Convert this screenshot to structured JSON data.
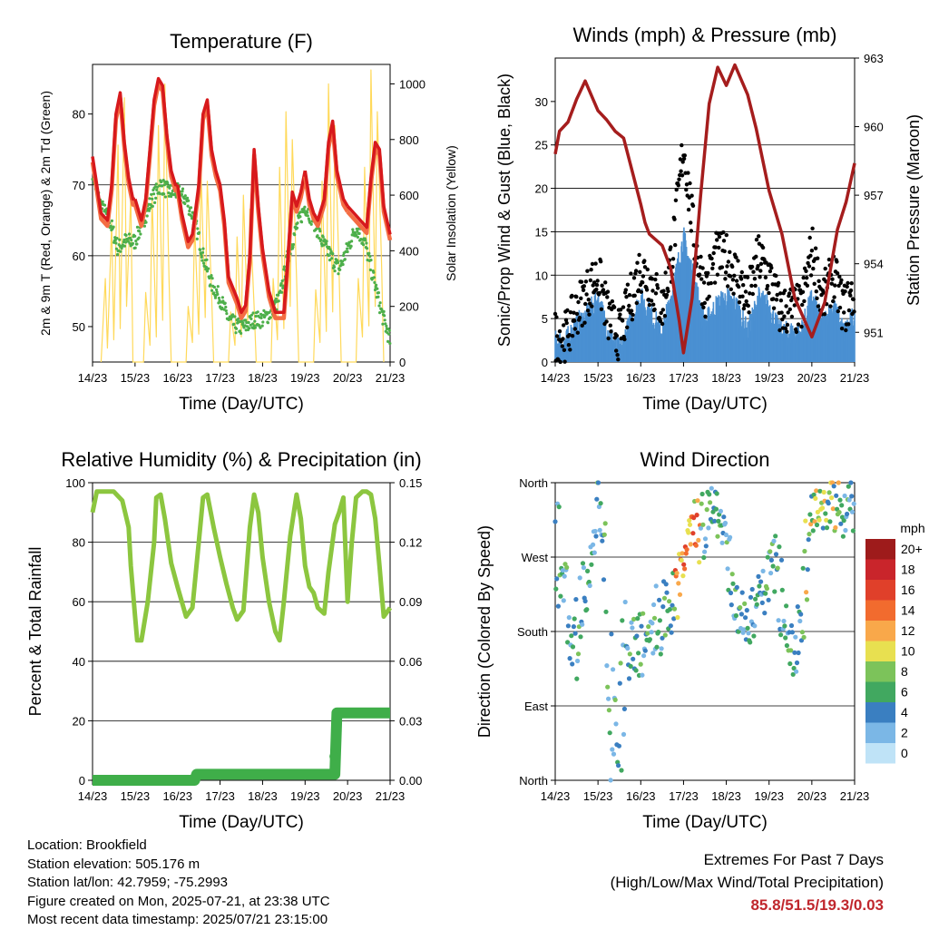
{
  "x_tick_labels": [
    "14/23",
    "15/23",
    "16/23",
    "17/23",
    "18/23",
    "19/23",
    "20/23",
    "21/23"
  ],
  "x_axis_label": "Time (Day/UTC)",
  "colors": {
    "temp_2m": "#d7191c",
    "temp_9m": "#f46d43",
    "dewpoint": "#4daf4a",
    "solar": "#ffd95a",
    "wind": "#4a90d2",
    "gust": "#000000",
    "pressure": "#a51d1d",
    "rh": "#8cc63f",
    "precip": "#3fae49"
  },
  "chart_data": [
    {
      "id": "temperature",
      "type": "line",
      "title": "Temperature (F)",
      "ylabel": "2m & 9m T (Red, Orange) & 2m Td (Green)",
      "y2label": "Solar Insolation (Yellow)",
      "ylim": [
        45,
        87
      ],
      "y2lim": [
        0,
        1070
      ],
      "yticks": [
        50,
        60,
        70,
        80
      ],
      "y2ticks": [
        0,
        200,
        400,
        600,
        800,
        1000
      ],
      "series": [
        {
          "x": [
            0,
            0.1,
            0.2,
            0.35,
            0.45,
            0.55,
            0.65,
            0.75,
            0.85,
            0.95,
            1.0
          ],
          "values": [
            74,
            70,
            66,
            65,
            70,
            80,
            83,
            76,
            71,
            68,
            68
          ]
        },
        {
          "x": [
            1.0,
            1.15,
            1.25,
            1.35,
            1.45,
            1.55,
            1.65,
            1.75,
            1.85,
            1.95,
            2.0
          ],
          "values": [
            68,
            65,
            68,
            75,
            82,
            85,
            84,
            77,
            72,
            70,
            70
          ]
        },
        {
          "x": [
            2.0,
            2.1,
            2.25,
            2.35,
            2.5,
            2.6,
            2.7,
            2.8,
            2.9,
            3.0
          ],
          "values": [
            70,
            66,
            62,
            63,
            70,
            80,
            82,
            75,
            72,
            70
          ]
        },
        {
          "x": [
            3.0,
            3.1,
            3.2,
            3.4,
            3.5,
            3.6,
            3.7,
            3.8,
            3.9,
            4.0
          ],
          "values": [
            70,
            65,
            57,
            54,
            52,
            53,
            60,
            75,
            67,
            61
          ]
        },
        {
          "x": [
            4.0,
            4.15,
            4.3,
            4.5,
            4.6,
            4.7,
            4.8,
            4.9,
            5.0
          ],
          "values": [
            61,
            55,
            52,
            52,
            60,
            69,
            67,
            69,
            72
          ]
        },
        {
          "x": [
            5.0,
            5.1,
            5.2,
            5.3,
            5.45,
            5.55,
            5.65,
            5.75,
            5.9,
            6.0
          ],
          "values": [
            72,
            68,
            66,
            65,
            68,
            76,
            79,
            72,
            68,
            67
          ]
        },
        {
          "x": [
            6.0,
            6.15,
            6.3,
            6.45,
            6.55,
            6.65,
            6.75,
            6.85,
            7.0
          ],
          "values": [
            67,
            66,
            65,
            64,
            71,
            76,
            75,
            67,
            63
          ]
        },
        {
          "x": [
            0,
            0.1,
            0.2,
            0.3,
            0.4,
            0.5,
            0.6,
            0.75,
            1.0,
            1.2,
            1.4,
            1.6,
            1.8,
            2.0,
            2.2,
            2.4,
            2.6,
            2.8,
            3.0,
            3.2,
            3.4,
            3.6,
            3.8,
            4.0,
            4.2,
            4.4,
            4.6,
            4.8,
            5.0,
            5.2,
            5.4,
            5.6,
            5.8,
            6.0,
            6.2,
            6.4,
            6.6,
            6.8,
            7.0
          ],
          "values": [
            72,
            69,
            67,
            66,
            65,
            63,
            61,
            62,
            62,
            65,
            68,
            70,
            69,
            69,
            68,
            65,
            60,
            56,
            54,
            51,
            50,
            50,
            51,
            51,
            52,
            54,
            60,
            64,
            67,
            65,
            62,
            60,
            58,
            61,
            64,
            62,
            57,
            52,
            48
          ]
        },
        {
          "x": [
            0.2,
            0.3,
            0.35,
            0.45,
            0.5,
            0.6,
            0.65,
            0.75,
            0.8,
            0.9,
            0.95,
            1.2,
            1.25,
            1.35,
            1.4,
            1.5,
            1.55,
            1.65,
            1.7,
            1.8,
            1.85,
            2.2,
            2.25,
            2.35,
            2.4,
            2.5,
            2.55,
            2.65,
            2.7,
            2.8,
            2.85,
            3.2,
            3.25,
            3.35,
            3.4,
            3.5,
            3.55,
            3.65,
            3.7,
            3.8,
            3.85,
            4.2,
            4.25,
            4.35,
            4.4,
            4.5,
            4.55,
            4.65,
            4.7,
            4.8,
            4.85,
            5.2,
            5.25,
            5.35,
            5.4,
            5.5,
            5.55,
            5.65,
            5.7,
            5.8,
            5.85,
            6.2,
            6.25,
            6.35,
            6.4,
            6.5,
            6.55,
            6.65,
            6.7,
            6.8,
            6.85
          ],
          "values": [
            0,
            300,
            50,
            500,
            80,
            780,
            120,
            950,
            200,
            600,
            0,
            0,
            250,
            60,
            600,
            90,
            850,
            150,
            1000,
            300,
            0,
            0,
            200,
            70,
            500,
            100,
            700,
            160,
            650,
            250,
            0,
            0,
            180,
            60,
            450,
            90,
            600,
            140,
            550,
            200,
            0,
            0,
            300,
            80,
            700,
            120,
            900,
            200,
            800,
            300,
            0,
            0,
            260,
            70,
            650,
            110,
            1000,
            180,
            850,
            320,
            0,
            0,
            300,
            90,
            700,
            130,
            1050,
            200,
            900,
            350,
            0
          ]
        }
      ]
    },
    {
      "id": "winds",
      "type": "scatter",
      "title": "Winds (mph) & Pressure (mb)",
      "ylabel": "Sonic/Prop Wind & Gust (Blue, Black)",
      "y2label": "Station Pressure (Maroon)",
      "ylim": [
        0,
        35
      ],
      "y2lim": [
        949.7,
        963.0
      ],
      "yticks": [
        0,
        5,
        10,
        15,
        20,
        25,
        30
      ],
      "y2ticks": [
        951,
        954,
        957,
        960,
        963
      ],
      "series": [
        {
          "x": [
            0,
            0.25,
            0.5,
            0.75,
            1.0,
            1.25,
            1.5,
            1.75,
            2.0,
            2.25,
            2.5,
            2.75,
            3.0,
            3.25,
            3.5,
            3.75,
            4.0,
            4.25,
            4.5,
            4.75,
            5.0,
            5.25,
            5.5,
            5.75,
            6.0,
            6.25,
            6.5,
            6.75,
            7.0
          ],
          "values": [
            2,
            2,
            4,
            5,
            7,
            3,
            1,
            4,
            7,
            5,
            3,
            8,
            14,
            9,
            4,
            6,
            7,
            6,
            3,
            7,
            6,
            3,
            3,
            3,
            7,
            4,
            6,
            3,
            5
          ]
        },
        {
          "x": [
            0,
            0.25,
            0.5,
            0.75,
            1.0,
            1.25,
            1.5,
            1.75,
            2.0,
            2.25,
            2.5,
            2.75,
            3.0,
            3.25,
            3.5,
            3.75,
            4.0,
            4.25,
            4.5,
            4.75,
            5.0,
            5.25,
            5.5,
            5.75,
            6.0,
            6.25,
            6.5,
            6.75,
            7.0
          ],
          "values": [
            3,
            3,
            6,
            8,
            10,
            5,
            3,
            7,
            11,
            9,
            6,
            13,
            25,
            14,
            8,
            12,
            12,
            10,
            7,
            12,
            10,
            6,
            6,
            6,
            13,
            7,
            10,
            6,
            8
          ]
        },
        {
          "x": [
            0,
            0.1,
            0.3,
            0.5,
            0.7,
            1.0,
            1.2,
            1.4,
            1.6,
            2.0,
            2.1,
            2.2,
            2.5,
            2.7,
            2.9,
            3.0,
            3.2,
            3.4,
            3.6,
            3.8,
            4.0,
            4.2,
            4.5,
            4.7,
            5.0,
            5.3,
            5.6,
            6.0,
            6.3,
            6.6,
            6.8,
            7.0
          ],
          "values": [
            958.8,
            959.8,
            960.2,
            961.2,
            962.0,
            960.7,
            960.3,
            959.8,
            959.5,
            956.6,
            955.8,
            955.3,
            954.8,
            953.8,
            951.5,
            950.1,
            952.5,
            957.0,
            961.0,
            962.6,
            961.8,
            962.7,
            961.4,
            959.9,
            957.2,
            955.3,
            952.5,
            950.8,
            952.3,
            955.5,
            956.7,
            958.4
          ]
        }
      ]
    },
    {
      "id": "humidity",
      "type": "line",
      "title": "Relative Humidity (%) & Precipitation (in)",
      "ylabel": "Percent & Total Rainfall",
      "ylim": [
        0,
        100
      ],
      "y2lim": [
        0,
        0.15
      ],
      "yticks": [
        0,
        20,
        40,
        60,
        80,
        100
      ],
      "y2ticks": [
        "0.00",
        "0.03",
        "0.06",
        "0.09",
        "0.12",
        "0.15"
      ],
      "series": [
        {
          "x": [
            0,
            0.1,
            0.3,
            0.5,
            0.7,
            0.85,
            0.9,
            1.0,
            1.05,
            1.15,
            1.3,
            1.45,
            1.5,
            1.6,
            1.7,
            1.85,
            2.0,
            2.2,
            2.35,
            2.5,
            2.6,
            2.7,
            2.85,
            3.0,
            3.15,
            3.3,
            3.4,
            3.55,
            3.7,
            3.8,
            3.9,
            4.0,
            4.15,
            4.3,
            4.4,
            4.5,
            4.65,
            4.8,
            4.9,
            5.0,
            5.1,
            5.2,
            5.3,
            5.45,
            5.55,
            5.7,
            5.8,
            5.9,
            6.0,
            6.1,
            6.2,
            6.35,
            6.45,
            6.55,
            6.65,
            6.75,
            6.85,
            7.0
          ],
          "values": [
            90,
            97,
            97,
            97,
            94,
            85,
            72,
            55,
            47,
            47,
            60,
            80,
            95,
            96,
            88,
            73,
            65,
            55,
            58,
            80,
            95,
            96,
            85,
            75,
            66,
            58,
            54,
            57,
            85,
            96,
            90,
            75,
            60,
            50,
            47,
            60,
            82,
            96,
            88,
            72,
            65,
            63,
            58,
            56,
            70,
            86,
            90,
            95,
            60,
            80,
            95,
            97,
            97,
            96,
            88,
            72,
            55,
            58
          ]
        },
        {
          "x": [
            0,
            0.3,
            0.6,
            0.9,
            1.2,
            1.5,
            1.8,
            2.1,
            2.4,
            2.45,
            2.7,
            3.0,
            3.3,
            3.6,
            3.9,
            4.2,
            4.5,
            4.8,
            5.1,
            5.4,
            5.7,
            5.75,
            6.0,
            6.3,
            6.6,
            6.9,
            7.0
          ],
          "values": [
            0,
            0,
            0,
            0,
            0,
            0,
            0,
            0,
            0,
            0.003,
            0.003,
            0.003,
            0.003,
            0.003,
            0.003,
            0.003,
            0.003,
            0.003,
            0.003,
            0.003,
            0.003,
            0.034,
            0.034,
            0.034,
            0.034,
            0.034,
            0.034
          ]
        }
      ]
    },
    {
      "id": "wind_direction",
      "type": "scatter",
      "title": "Wind Direction",
      "ylabel": "Direction (Colored By Speed)",
      "ylim": [
        0,
        360
      ],
      "yticks": [
        "North",
        "East",
        "South",
        "West",
        "North"
      ],
      "legend_title": "mph",
      "legend_labels": [
        "20+",
        "18",
        "16",
        "14",
        "12",
        "10",
        "8",
        "6",
        "4",
        "2",
        "0"
      ],
      "legend_colors": [
        "#9e1b1b",
        "#c9252b",
        "#e0402a",
        "#f26b2e",
        "#f9a84a",
        "#e8e050",
        "#7cc35a",
        "#41a860",
        "#3a7fc1",
        "#7bb7e6",
        "#bfe3f7"
      ],
      "series": [
        {
          "x": [
            0.2,
            0.4,
            0.6,
            0.9,
            1.0,
            1.2,
            1.5,
            1.8,
            2.0,
            2.2,
            2.4,
            2.6,
            2.8,
            3.0,
            3.2,
            3.5,
            3.8,
            4.0,
            4.2,
            4.5,
            4.8,
            5.0,
            5.2,
            5.5,
            5.8,
            6.0,
            6.2,
            6.4,
            6.6,
            6.8
          ],
          "values": [
            230,
            150,
            250,
            260,
            340,
            300,
            10,
            180,
            120,
            190,
            170,
            200,
            210,
            260,
            290,
            280,
            320,
            300,
            230,
            190,
            210,
            250,
            280,
            150,
            170,
            330,
            320,
            340,
            345,
            330
          ]
        },
        {
          "x": [
            0.1,
            0.3,
            0.5,
            0.7,
            1.0,
            1.1,
            1.3,
            1.6,
            1.9,
            2.1,
            2.3,
            2.5,
            2.7,
            2.9,
            3.1,
            3.3,
            3.6,
            3.9,
            4.1,
            4.3,
            4.6,
            4.9,
            5.1,
            5.3,
            5.6,
            5.9,
            6.1,
            6.3,
            6.5,
            6.7,
            6.9
          ],
          "values": [
            320,
            220,
            140,
            200,
            350,
            300,
            20,
            190,
            170,
            180,
            200,
            220,
            240,
            270,
            300,
            310,
            330,
            320,
            220,
            180,
            200,
            240,
            270,
            190,
            150,
            320,
            340,
            330,
            320,
            310,
            340
          ]
        }
      ]
    }
  ],
  "info": {
    "location": "Location: Brookfield",
    "elevation": "Station elevation: 505.176 m",
    "latlon": "Station lat/lon: 42.7959; -75.2993",
    "created": "Figure created on Mon, 2025-07-21, at 23:38 UTC",
    "recent": "Most recent data timestamp: 2025/07/21 23:15:00"
  },
  "extremes": {
    "line1": "Extremes For Past 7 Days",
    "line2": "(High/Low/Max Wind/Total Precipitation)",
    "value": "85.8/51.5/19.3/0.03"
  }
}
